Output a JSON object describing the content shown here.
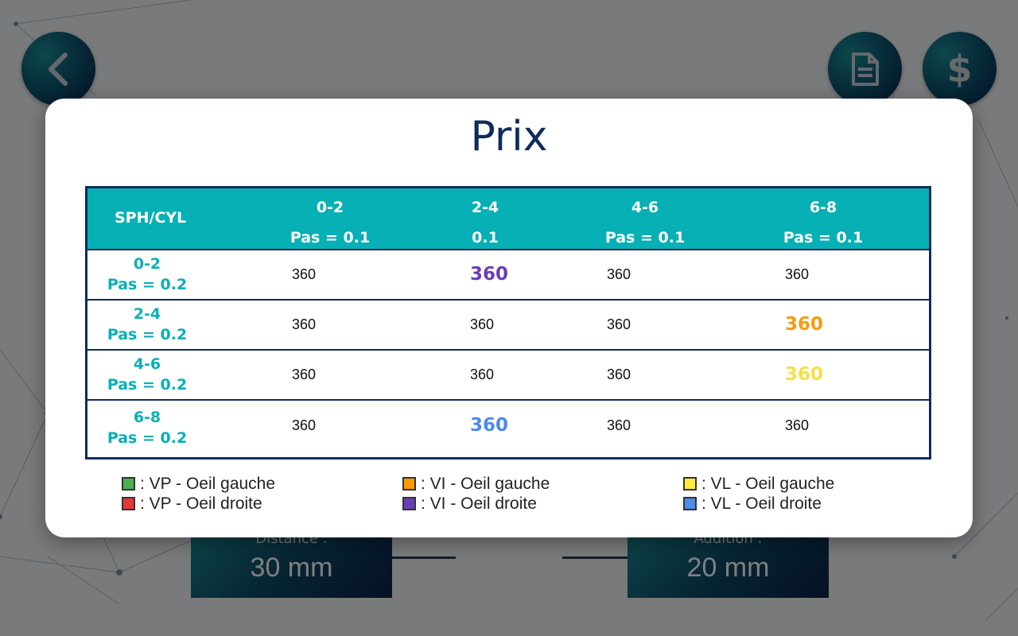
{
  "background": {
    "distance": {
      "label": "Distance :",
      "value": "30 mm"
    },
    "addition": {
      "label": "Addition :",
      "value": "20 mm"
    }
  },
  "buttons": {
    "back": {
      "icon": "chevron-left-icon"
    },
    "document": {
      "icon": "document-icon"
    },
    "price": {
      "icon": "dollar-icon",
      "glyph": "$"
    }
  },
  "modal": {
    "title": "Prix",
    "table": {
      "corner_label": "SPH/CYL",
      "columns": [
        {
          "range": "0-2",
          "step": "Pas = 0.1"
        },
        {
          "range": "2-4",
          "step": "0.1"
        },
        {
          "range": "4-6",
          "step": "Pas = 0.1"
        },
        {
          "range": "6-8",
          "step": "Pas = 0.1"
        }
      ],
      "rows": [
        {
          "range": "0-2",
          "step": "Pas = 0.2",
          "cells": [
            "360",
            "360",
            "360",
            "360"
          ]
        },
        {
          "range": "2-4",
          "step": "Pas = 0.2",
          "cells": [
            "360",
            "360",
            "360",
            "360"
          ]
        },
        {
          "range": "4-6",
          "step": "Pas = 0.2",
          "cells": [
            "360",
            "360",
            "360",
            "360"
          ]
        },
        {
          "range": "6-8",
          "step": "Pas = 0.2",
          "cells": [
            "360",
            "360",
            "360",
            "360"
          ]
        }
      ],
      "highlights": [
        {
          "row": 0,
          "col": 1,
          "color": "#6a3db3"
        },
        {
          "row": 1,
          "col": 3,
          "color": "#f39c12"
        },
        {
          "row": 2,
          "col": 3,
          "color": "#f5e04a"
        },
        {
          "row": 3,
          "col": 1,
          "color": "#4a8ce8"
        }
      ]
    },
    "legend": [
      {
        "text": ": VP - Oeil gauche",
        "color": "#4caf50"
      },
      {
        "text": ": VP - Oeil droite",
        "color": "#e53935"
      },
      {
        "text": ": VI - Oeil gauche",
        "color": "#ff9800"
      },
      {
        "text": ": VI - Oeil droite",
        "color": "#6a3db3"
      },
      {
        "text": ": VL - Oeil gauche",
        "color": "#ffeb3b"
      },
      {
        "text": ": VL - Oeil droite",
        "color": "#4a8ce8"
      }
    ]
  },
  "colors": {
    "accent": "#06b0b5",
    "navy": "#0f2b57"
  }
}
